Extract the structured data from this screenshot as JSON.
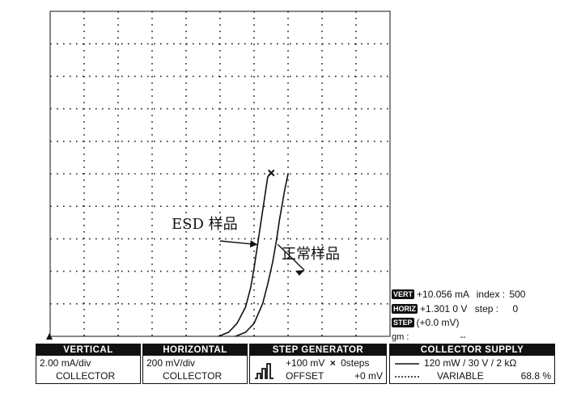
{
  "chart_data": {
    "type": "line",
    "title": "",
    "xlabel": "",
    "ylabel": "",
    "grid": true,
    "divisions": {
      "x": 10,
      "y": 10
    },
    "x_units_per_div": "200 mV/div",
    "y_units_per_div": "2.00 mA/div",
    "xlim": [
      0,
      2.0
    ],
    "ylim": [
      0,
      20.0
    ],
    "series": [
      {
        "name": "ESD 样品",
        "x": [
          0.99,
          1.05,
          1.1,
          1.15,
          1.18,
          1.2,
          1.22,
          1.24,
          1.26,
          1.28,
          1.3
        ],
        "y": [
          0.0,
          0.25,
          0.8,
          1.8,
          3.0,
          4.2,
          5.6,
          7.0,
          8.4,
          9.8,
          10.06
        ]
      },
      {
        "name": "正常样品",
        "x": [
          1.09,
          1.15,
          1.2,
          1.25,
          1.28,
          1.31,
          1.33,
          1.35,
          1.37,
          1.38,
          1.4
        ],
        "y": [
          0.0,
          0.25,
          0.8,
          2.0,
          3.2,
          4.6,
          5.8,
          7.2,
          8.4,
          9.0,
          10.0
        ]
      }
    ],
    "cursor": {
      "x": 1.301,
      "y": 10.056
    },
    "annotations": [
      {
        "text": "ESD 样品",
        "target_series": 0
      },
      {
        "text": "正常样品",
        "target_series": 1
      }
    ]
  },
  "readouts": {
    "vert_label": "VERT",
    "vert_value": "+10.056 mA",
    "index_label": "index :",
    "index_value": "500",
    "horiz_label": "HORIZ",
    "horiz_value": "+1.301 0 V",
    "step_label": "step :",
    "step_value": "0",
    "step_badge": "STEP",
    "step_offset": "(+0.0 mV)",
    "gm_label": "gm :",
    "gm_value": "--"
  },
  "panels": {
    "vertical": {
      "title": "VERTICAL",
      "line1": "2.00 mA/div",
      "line2": "COLLECTOR"
    },
    "horizontal": {
      "title": "HORIZONTAL",
      "line1": "200 mV/div",
      "line2": "COLLECTOR"
    },
    "step_generator": {
      "title": "STEP GENERATOR",
      "amp": "+100 mV",
      "times": "×",
      "steps": "0steps",
      "offset_label": "OFFSET",
      "offset_value": "+0 mV"
    },
    "collector_supply": {
      "title": "COLLECTOR SUPPLY",
      "power": "120 mW / 30 V  /  2 kΩ",
      "mode": "VARIABLE",
      "percent": "68.8 %"
    }
  },
  "colors": {
    "trace": "#111111",
    "grid": "#222222",
    "background": "#ffffff"
  }
}
